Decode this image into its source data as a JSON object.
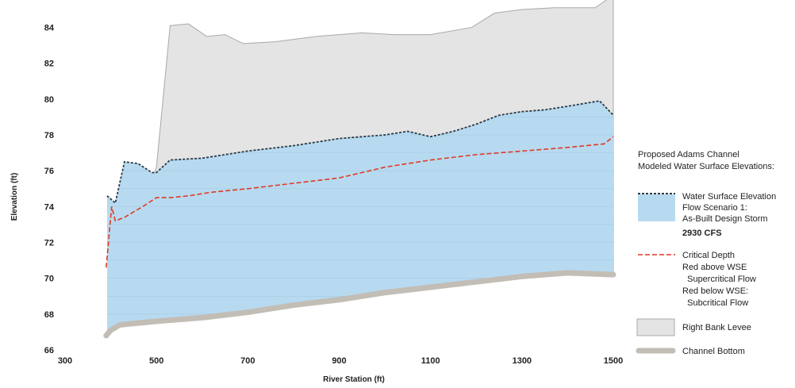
{
  "chart_data": {
    "type": "area",
    "xlabel": "River Station (ft)",
    "ylabel": "Elevation (ft)",
    "xlim": [
      300,
      1500
    ],
    "ylim": [
      66,
      85
    ],
    "xticks": [
      "300",
      "500",
      "700",
      "900",
      "1100",
      "1300",
      "1500"
    ],
    "yticks": [
      "66",
      "68",
      "70",
      "72",
      "74",
      "76",
      "78",
      "80",
      "82",
      "84"
    ],
    "grid": "horizontal lines inside water area",
    "legend_placement": "right",
    "legend": {
      "heading": [
        "Proposed Adams Channel",
        "Modeled Water Surface Elevations:"
      ],
      "wse_lines": [
        "Water Surface Elevation",
        "Flow Scenario 1:",
        "As-Built Design Storm"
      ],
      "wse_flow": "2930 CFS",
      "critical_lines": [
        "Critical Depth",
        "Red above WSE",
        "  Supercritical Flow",
        "Red below WSE:",
        "  Subcritical Flow"
      ],
      "levee_label": "Right Bank Levee",
      "bottom_label": "Channel Bottom"
    },
    "series": [
      {
        "name": "Right Bank Levee",
        "x": [
          395,
          420,
          480,
          500,
          530,
          570,
          610,
          650,
          690,
          760,
          850,
          950,
          1020,
          1100,
          1190,
          1240,
          1300,
          1370,
          1460,
          1500
        ],
        "y": [
          72.1,
          72.2,
          74.8,
          76.2,
          84.1,
          84.2,
          83.5,
          83.6,
          83.1,
          83.2,
          83.5,
          83.7,
          83.6,
          83.6,
          84.0,
          84.8,
          85.0,
          85.1,
          85.1,
          85.8
        ]
      },
      {
        "name": "Water Surface Elevation",
        "x": [
          392,
          410,
          430,
          460,
          490,
          500,
          530,
          600,
          700,
          800,
          900,
          1000,
          1050,
          1100,
          1150,
          1200,
          1250,
          1300,
          1350,
          1400,
          1470,
          1500
        ],
        "y": [
          74.6,
          74.2,
          76.5,
          76.4,
          75.9,
          75.9,
          76.6,
          76.7,
          77.1,
          77.4,
          77.8,
          78.0,
          78.2,
          77.9,
          78.2,
          78.6,
          79.1,
          79.3,
          79.4,
          79.6,
          79.9,
          79.1
        ]
      },
      {
        "name": "Critical Depth",
        "x": [
          390,
          402,
          410,
          430,
          470,
          500,
          530,
          570,
          620,
          700,
          800,
          900,
          1000,
          1100,
          1200,
          1300,
          1400,
          1480,
          1500
        ],
        "y": [
          70.6,
          74.0,
          73.2,
          73.4,
          74.0,
          74.5,
          74.5,
          74.6,
          74.8,
          75.0,
          75.3,
          75.6,
          76.2,
          76.6,
          76.9,
          77.1,
          77.3,
          77.5,
          77.9
        ]
      },
      {
        "name": "Channel Bottom",
        "x": [
          390,
          400,
          420,
          500,
          600,
          700,
          800,
          900,
          1000,
          1100,
          1200,
          1300,
          1400,
          1500
        ],
        "y": [
          66.8,
          67.1,
          67.4,
          67.6,
          67.8,
          68.1,
          68.5,
          68.8,
          69.2,
          69.5,
          69.8,
          70.1,
          70.3,
          70.2
        ]
      }
    ]
  },
  "colors": {
    "levee_fill": "#e4e4e4",
    "levee_stroke": "#a8a8a8",
    "water_fill": "#b7daf0",
    "water_grid": "#a3c9e2",
    "wse_line": "#2b3a44",
    "critical_line": "#e03a24",
    "bottom": "#c2bdb5"
  }
}
